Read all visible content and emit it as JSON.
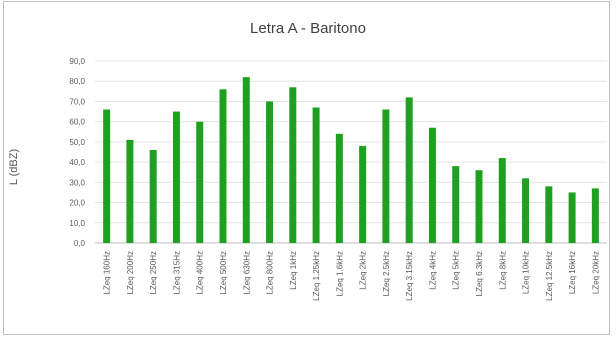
{
  "chart_data": {
    "type": "bar",
    "title": "Letra A - Baritono",
    "xlabel": "",
    "ylabel": "L (dBZ)",
    "ylim": [
      0,
      90
    ],
    "yticks": [
      "0,0",
      "10,0",
      "20,0",
      "30,0",
      "40,0",
      "50,0",
      "60,0",
      "70,0",
      "80,0",
      "90,0"
    ],
    "grid": true,
    "legend": "none",
    "bar_color": "#20a020",
    "categories": [
      "LZeq 160Hz",
      "LZeq 200Hz",
      "LZeq 250Hz",
      "LZeq 315Hz",
      "LZeq 400Hz",
      "LZeq 500Hz",
      "LZeq 630Hz",
      "LZeq 800Hz",
      "LZeq 1kHz",
      "LZeq 1.25kHz",
      "LZeq 1.6kHz",
      "LZeq 2kHz",
      "LZeq 2.5kHz",
      "LZeq 3.15kHz",
      "LZeq 4kHz",
      "LZeq 5kHz",
      "LZeq 6.3kHz",
      "LZeq 8kHz",
      "LZeq 10kHz",
      "LZeq 12.5kHz",
      "LZeq 16kHz",
      "LZeq 20kHz"
    ],
    "values": [
      66,
      51,
      46,
      65,
      60,
      76,
      82,
      70,
      77,
      67,
      54,
      48,
      66,
      72,
      57,
      38,
      36,
      42,
      32,
      28,
      25,
      27
    ]
  }
}
